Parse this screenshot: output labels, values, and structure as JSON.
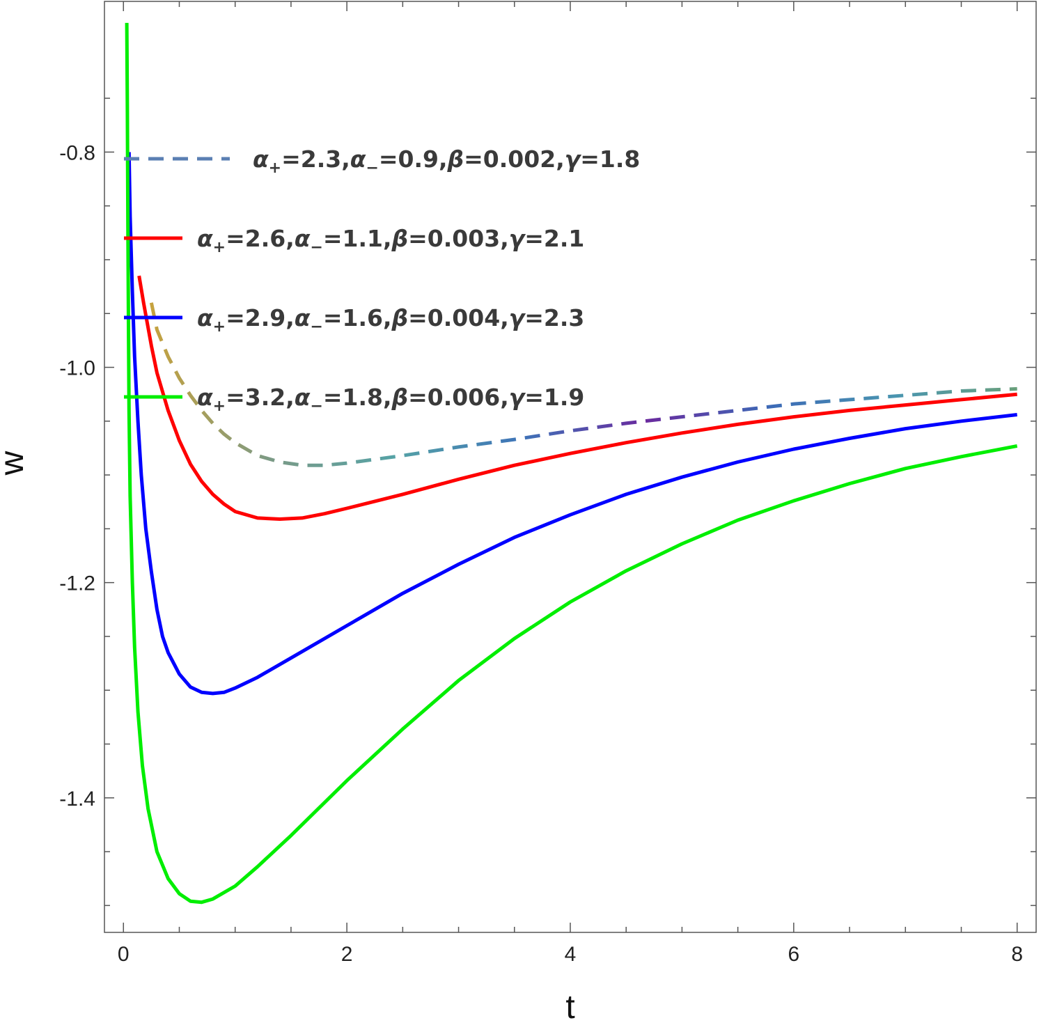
{
  "chart_data": {
    "type": "line",
    "title": "",
    "xlabel": "t",
    "ylabel": "w",
    "xlim": [
      -0.17,
      8.17
    ],
    "ylim": [
      -1.525,
      -0.66
    ],
    "x_ticks": [
      0,
      2,
      4,
      6,
      8
    ],
    "x_tick_labels": [
      "0",
      "2",
      "4",
      "6",
      "8"
    ],
    "y_ticks": [
      -1.4,
      -1.2,
      -1.0,
      -0.8
    ],
    "y_tick_labels": [
      "-1.4",
      "-1.2",
      "-1.0",
      "-0.8"
    ],
    "grid": false,
    "legend_position": "top-left",
    "series": [
      {
        "name": "α₊=2.3,α₋=0.9,β=0.002,γ=1.8",
        "legend_parts": [
          "α",
          "+",
          "=2.3,",
          "α",
          "−",
          "=0.9,",
          "β",
          "=0.002,",
          "γ",
          "=1.8"
        ],
        "style": "dashed",
        "color": "#5b7fb3",
        "gradient": [
          "#c9a23b",
          "#7b9a86",
          "#55a2a6",
          "#3e74b8",
          "#6a2a9e",
          "#3c6ab6",
          "#4a95b0",
          "#6aa07a"
        ],
        "points": [
          [
            0.25,
            -0.94
          ],
          [
            0.3,
            -0.965
          ],
          [
            0.4,
            -0.99
          ],
          [
            0.5,
            -1.01
          ],
          [
            0.6,
            -1.026
          ],
          [
            0.7,
            -1.04
          ],
          [
            0.8,
            -1.052
          ],
          [
            0.9,
            -1.062
          ],
          [
            1.0,
            -1.07
          ],
          [
            1.2,
            -1.082
          ],
          [
            1.4,
            -1.088
          ],
          [
            1.6,
            -1.091
          ],
          [
            1.8,
            -1.091
          ],
          [
            2.0,
            -1.089
          ],
          [
            2.5,
            -1.082
          ],
          [
            3.0,
            -1.074
          ],
          [
            3.5,
            -1.067
          ],
          [
            4.0,
            -1.059
          ],
          [
            4.5,
            -1.052
          ],
          [
            5.0,
            -1.046
          ],
          [
            5.5,
            -1.04
          ],
          [
            6.0,
            -1.034
          ],
          [
            6.5,
            -1.03
          ],
          [
            7.0,
            -1.026
          ],
          [
            7.5,
            -1.022
          ],
          [
            8.0,
            -1.02
          ]
        ]
      },
      {
        "name": "α₊=2.6,α₋=1.1,β=0.003,γ=2.1",
        "legend_parts": [
          "α",
          "+",
          "=2.6,",
          "α",
          "−",
          "=1.1,",
          "β",
          "=0.003,",
          "γ",
          "=2.1"
        ],
        "style": "solid",
        "color": "#ff0000",
        "points": [
          [
            0.14,
            -0.915
          ],
          [
            0.18,
            -0.94
          ],
          [
            0.25,
            -0.98
          ],
          [
            0.3,
            -1.005
          ],
          [
            0.4,
            -1.04
          ],
          [
            0.5,
            -1.068
          ],
          [
            0.6,
            -1.09
          ],
          [
            0.7,
            -1.106
          ],
          [
            0.8,
            -1.118
          ],
          [
            0.9,
            -1.127
          ],
          [
            1.0,
            -1.134
          ],
          [
            1.2,
            -1.14
          ],
          [
            1.4,
            -1.141
          ],
          [
            1.6,
            -1.14
          ],
          [
            1.8,
            -1.136
          ],
          [
            2.0,
            -1.131
          ],
          [
            2.5,
            -1.118
          ],
          [
            3.0,
            -1.104
          ],
          [
            3.5,
            -1.091
          ],
          [
            4.0,
            -1.08
          ],
          [
            4.5,
            -1.07
          ],
          [
            5.0,
            -1.061
          ],
          [
            5.5,
            -1.053
          ],
          [
            6.0,
            -1.046
          ],
          [
            6.5,
            -1.04
          ],
          [
            7.0,
            -1.035
          ],
          [
            7.5,
            -1.03
          ],
          [
            8.0,
            -1.025
          ]
        ]
      },
      {
        "name": "α₊=2.9,α₋=1.6,β=0.004,γ=2.3",
        "legend_parts": [
          "α",
          "+",
          "=2.9,",
          "α",
          "−",
          "=1.6,",
          "β",
          "=0.004,",
          "γ",
          "=2.3"
        ],
        "style": "solid",
        "color": "#0000ff",
        "points": [
          [
            0.05,
            -0.8
          ],
          [
            0.06,
            -0.86
          ],
          [
            0.08,
            -0.93
          ],
          [
            0.1,
            -0.99
          ],
          [
            0.13,
            -1.05
          ],
          [
            0.16,
            -1.1
          ],
          [
            0.2,
            -1.15
          ],
          [
            0.25,
            -1.19
          ],
          [
            0.3,
            -1.225
          ],
          [
            0.35,
            -1.25
          ],
          [
            0.4,
            -1.265
          ],
          [
            0.5,
            -1.285
          ],
          [
            0.6,
            -1.297
          ],
          [
            0.7,
            -1.302
          ],
          [
            0.8,
            -1.303
          ],
          [
            0.9,
            -1.302
          ],
          [
            1.0,
            -1.298
          ],
          [
            1.2,
            -1.288
          ],
          [
            1.5,
            -1.27
          ],
          [
            2.0,
            -1.24
          ],
          [
            2.5,
            -1.21
          ],
          [
            3.0,
            -1.183
          ],
          [
            3.5,
            -1.158
          ],
          [
            4.0,
            -1.137
          ],
          [
            4.5,
            -1.118
          ],
          [
            5.0,
            -1.102
          ],
          [
            5.5,
            -1.088
          ],
          [
            6.0,
            -1.076
          ],
          [
            6.5,
            -1.066
          ],
          [
            7.0,
            -1.057
          ],
          [
            7.5,
            -1.05
          ],
          [
            8.0,
            -1.044
          ]
        ]
      },
      {
        "name": "α₊=3.2,α₋=1.8,β=0.006,γ=1.9",
        "legend_parts": [
          "α",
          "+",
          "=3.2,",
          "α",
          "−",
          "=1.8,",
          "β",
          "=0.006,",
          "γ",
          "=1.9"
        ],
        "style": "solid",
        "color": "#00ee00",
        "points": [
          [
            0.03,
            -0.68
          ],
          [
            0.035,
            -0.76
          ],
          [
            0.04,
            -0.87
          ],
          [
            0.045,
            -0.96
          ],
          [
            0.05,
            -1.04
          ],
          [
            0.06,
            -1.12
          ],
          [
            0.08,
            -1.2
          ],
          [
            0.1,
            -1.26
          ],
          [
            0.13,
            -1.32
          ],
          [
            0.17,
            -1.37
          ],
          [
            0.22,
            -1.41
          ],
          [
            0.3,
            -1.45
          ],
          [
            0.4,
            -1.475
          ],
          [
            0.5,
            -1.489
          ],
          [
            0.6,
            -1.496
          ],
          [
            0.7,
            -1.497
          ],
          [
            0.8,
            -1.494
          ],
          [
            1.0,
            -1.482
          ],
          [
            1.2,
            -1.464
          ],
          [
            1.5,
            -1.435
          ],
          [
            2.0,
            -1.384
          ],
          [
            2.5,
            -1.336
          ],
          [
            3.0,
            -1.291
          ],
          [
            3.5,
            -1.252
          ],
          [
            4.0,
            -1.218
          ],
          [
            4.5,
            -1.189
          ],
          [
            5.0,
            -1.164
          ],
          [
            5.5,
            -1.142
          ],
          [
            6.0,
            -1.124
          ],
          [
            6.5,
            -1.108
          ],
          [
            7.0,
            -1.094
          ],
          [
            7.5,
            -1.083
          ],
          [
            8.0,
            -1.073
          ]
        ]
      }
    ]
  }
}
